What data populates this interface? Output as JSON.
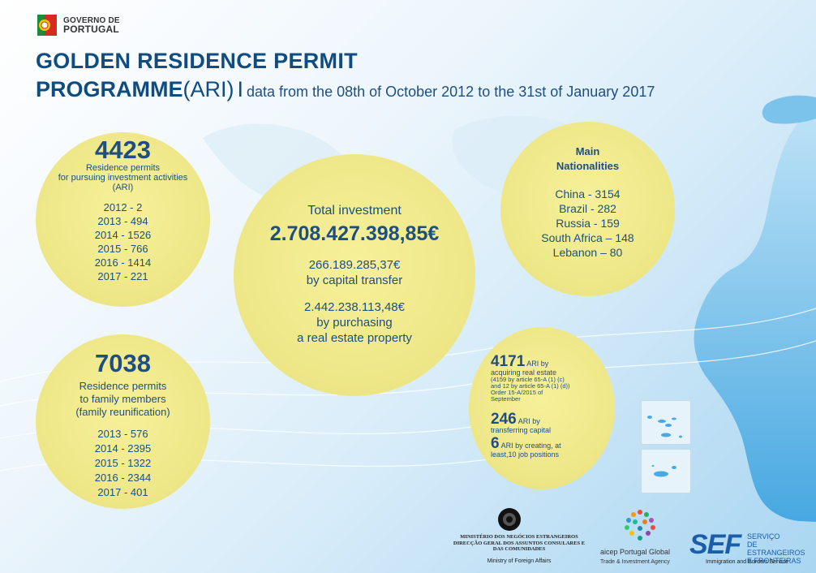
{
  "header": {
    "gov_line1": "GOVERNO DE",
    "gov_line2": "PORTUGAL",
    "title_line1": "GOLDEN RESIDENCE PERMIT",
    "title_line2_bold": "PROGRAMME",
    "title_line2_ari": "(ARI)",
    "title_separator": "I",
    "period": "data from the 08th of October 2012 to the 31st of January 2017"
  },
  "investment_permits": {
    "count": "4423",
    "label_line1": "Residence permits",
    "label_line2": "for pursuing investment activities",
    "label_line3": "(ARI)",
    "years": [
      "2012 - 2",
      "2013 - 494",
      "2014 - 1526",
      "2015 - 766",
      "2016 - 1414",
      "2017 - 221"
    ]
  },
  "total_investment": {
    "label": "Total investment",
    "value": "2.708.427.398,85€",
    "capital_value": "266.189.285,37€",
    "capital_label": "by capital transfer",
    "realestate_value": "2.442.238.113,48€",
    "realestate_label1": "by purchasing",
    "realestate_label2": "a real estate property"
  },
  "nationalities": {
    "title_line1": "Main",
    "title_line2": "Nationalities",
    "items": [
      "China - 3154",
      "Brazil  -  282",
      "Russia - 159",
      "South Africa – 148",
      "Lebanon – 80"
    ]
  },
  "family_permits": {
    "count": "7038",
    "label_line1": "Residence permits",
    "label_line2": "to family members",
    "label_line3": "(family reunification)",
    "years": [
      "2013 - 576",
      "2014 - 2395",
      "2015 - 1322",
      "2016 - 2344",
      "2017 - 401"
    ]
  },
  "breakdown": {
    "realestate_count": "4171",
    "realestate_suffix": "ARI by",
    "realestate_line1": "acquiring real estate",
    "realestate_note1": "(4159 by article 65-A (1) (c)",
    "realestate_note2": "and 12 by article 65-A (1) (d))",
    "realestate_note3": "Order 15-A/2015 of",
    "realestate_note4": "September",
    "capital_count": "246",
    "capital_suffix": "ARI by",
    "capital_line1": "transferring capital",
    "jobs_count": "6",
    "jobs_suffix": "ARI by creating, at",
    "jobs_line1": "least,10 job positions"
  },
  "footer": {
    "mne_line1": "MINISTÉRIO DOS NEGÓCIOS ESTRANGEIROS",
    "mne_line2": "DIRECÇÃO GERAL DOS ASSUNTOS CONSULARES E",
    "mne_line3": "DAS COMUNIDADES",
    "mne_sub": "Ministry of Foreign Affairs",
    "aicep_name": "aicep Portugal Global",
    "aicep_sub": "Trade & Investment Agency",
    "sef_logo": "SEF",
    "sef_line1": "SERVIÇO",
    "sef_line2": "DE ESTRANGEIROS",
    "sef_line3": "E FRONTEIRAS",
    "sef_sub": "Immigration and Borders Service"
  },
  "colors": {
    "title": "#0f4c81",
    "circle": "#efe88a",
    "map_blue": "#4aa9e3"
  }
}
